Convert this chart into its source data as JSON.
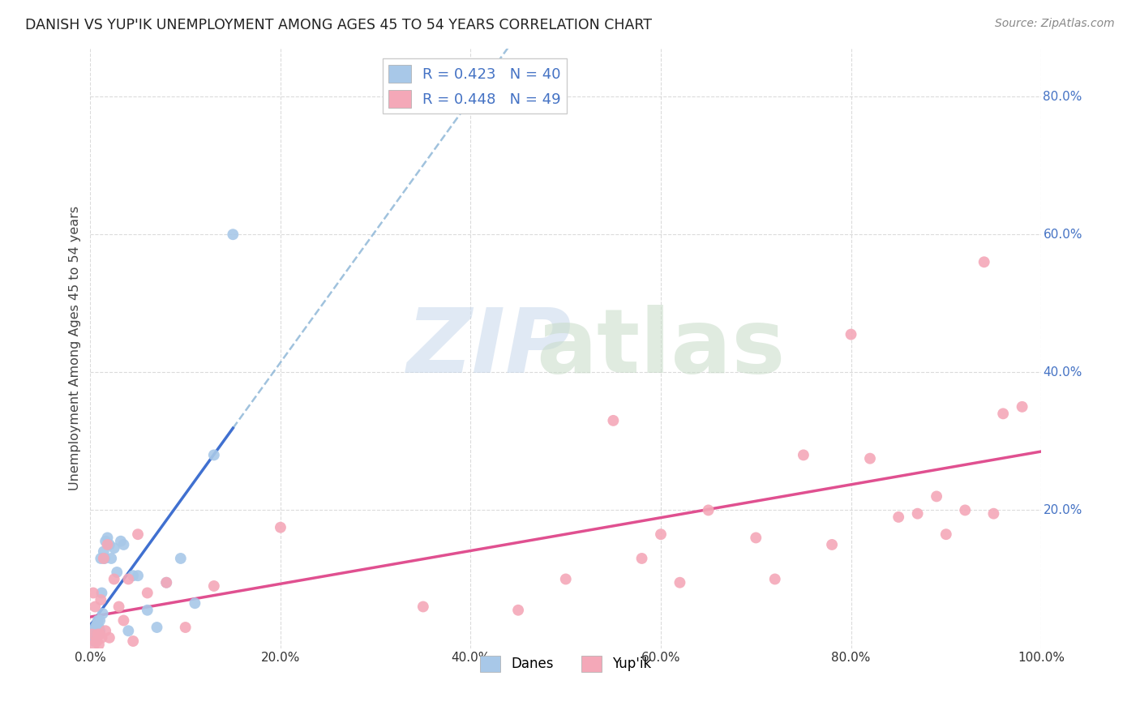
{
  "title": "DANISH VS YUP'IK UNEMPLOYMENT AMONG AGES 45 TO 54 YEARS CORRELATION CHART",
  "source": "Source: ZipAtlas.com",
  "ylabel": "Unemployment Among Ages 45 to 54 years",
  "xlim": [
    0,
    1.0
  ],
  "ylim": [
    0,
    0.87
  ],
  "xticks": [
    0.0,
    0.2,
    0.4,
    0.6,
    0.8,
    1.0
  ],
  "xticklabels": [
    "0.0%",
    "20.0%",
    "40.0%",
    "60.0%",
    "80.0%",
    "100.0%"
  ],
  "yticks": [
    0.2,
    0.4,
    0.6,
    0.8
  ],
  "yticklabels": [
    "20.0%",
    "40.0%",
    "60.0%",
    "80.0%"
  ],
  "danes_R": 0.423,
  "danes_N": 40,
  "yupik_R": 0.448,
  "yupik_N": 49,
  "danes_color": "#a8c8e8",
  "yupik_color": "#f4a8b8",
  "danes_line_color": "#4070d0",
  "yupik_line_color": "#e05090",
  "dashed_line_color": "#90b8d8",
  "legend_text_color": "#4472c4",
  "background_color": "#ffffff",
  "grid_color": "#cccccc",
  "danes_x": [
    0.002,
    0.003,
    0.003,
    0.004,
    0.004,
    0.005,
    0.005,
    0.006,
    0.006,
    0.007,
    0.007,
    0.008,
    0.008,
    0.009,
    0.009,
    0.01,
    0.01,
    0.011,
    0.012,
    0.013,
    0.014,
    0.015,
    0.016,
    0.018,
    0.02,
    0.022,
    0.025,
    0.028,
    0.032,
    0.035,
    0.04,
    0.045,
    0.05,
    0.06,
    0.07,
    0.08,
    0.095,
    0.11,
    0.13,
    0.15
  ],
  "danes_y": [
    0.02,
    0.015,
    0.025,
    0.01,
    0.02,
    0.015,
    0.03,
    0.02,
    0.025,
    0.03,
    0.035,
    0.025,
    0.04,
    0.02,
    0.03,
    0.025,
    0.04,
    0.13,
    0.08,
    0.05,
    0.14,
    0.13,
    0.155,
    0.16,
    0.15,
    0.13,
    0.145,
    0.11,
    0.155,
    0.15,
    0.025,
    0.105,
    0.105,
    0.055,
    0.03,
    0.095,
    0.13,
    0.065,
    0.28,
    0.6
  ],
  "yupik_x": [
    0.002,
    0.003,
    0.004,
    0.005,
    0.006,
    0.007,
    0.008,
    0.009,
    0.01,
    0.011,
    0.012,
    0.014,
    0.016,
    0.018,
    0.02,
    0.025,
    0.03,
    0.035,
    0.04,
    0.045,
    0.05,
    0.06,
    0.08,
    0.1,
    0.13,
    0.2,
    0.35,
    0.45,
    0.5,
    0.55,
    0.58,
    0.6,
    0.62,
    0.65,
    0.7,
    0.72,
    0.75,
    0.78,
    0.8,
    0.82,
    0.85,
    0.87,
    0.89,
    0.9,
    0.92,
    0.94,
    0.95,
    0.96,
    0.98
  ],
  "yupik_y": [
    0.02,
    0.08,
    0.005,
    0.06,
    0.01,
    0.01,
    0.02,
    0.005,
    0.02,
    0.07,
    0.015,
    0.13,
    0.025,
    0.15,
    0.015,
    0.1,
    0.06,
    0.04,
    0.1,
    0.01,
    0.165,
    0.08,
    0.095,
    0.03,
    0.09,
    0.175,
    0.06,
    0.055,
    0.1,
    0.33,
    0.13,
    0.165,
    0.095,
    0.2,
    0.16,
    0.1,
    0.28,
    0.15,
    0.455,
    0.275,
    0.19,
    0.195,
    0.22,
    0.165,
    0.2,
    0.56,
    0.195,
    0.34,
    0.35
  ]
}
